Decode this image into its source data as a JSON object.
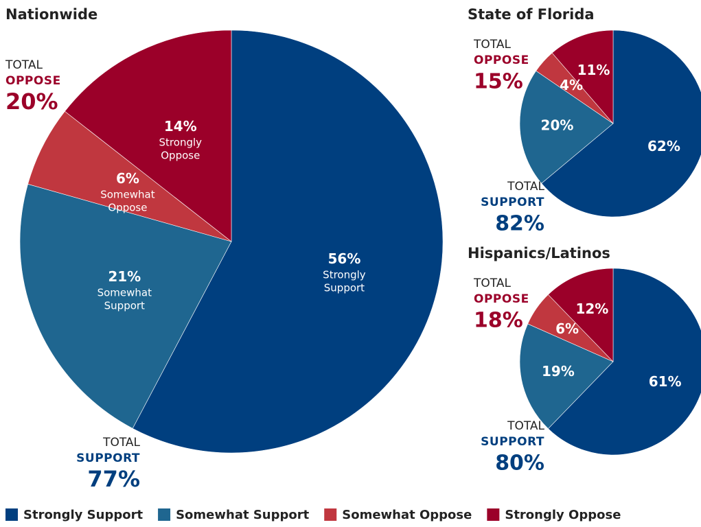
{
  "chart_data": [
    {
      "type": "pie",
      "title": "Nationwide",
      "categories": [
        "Strongly Support",
        "Somewhat Support",
        "Somewhat Oppose",
        "Strongly Oppose"
      ],
      "values": [
        56,
        21,
        6,
        14
      ],
      "value_labels": [
        "56%",
        "21%",
        "6%",
        "14%"
      ],
      "colors": [
        "#003f7f",
        "#1f6690",
        "#c0373f",
        "#9b0029"
      ],
      "slice_names": true,
      "legend": "bottom",
      "annotations": [
        {
          "title": "TOTAL",
          "name": "OPPOSE",
          "text": "20%"
        },
        {
          "title": "TOTAL",
          "name": "SUPPORT",
          "text": "77%"
        }
      ]
    },
    {
      "type": "pie",
      "title": "State of Florida",
      "values": [
        62,
        20,
        4,
        11
      ],
      "value_labels": [
        "62%",
        "20%",
        "4%",
        "11%"
      ],
      "colors": [
        "#003f7f",
        "#1f6690",
        "#c0373f",
        "#9b0029"
      ],
      "slice_names": false,
      "annotations": [
        {
          "title": "TOTAL",
          "name": "OPPOSE",
          "text": "15%"
        },
        {
          "title": "TOTAL",
          "name": "SUPPORT",
          "text": "82%"
        }
      ]
    },
    {
      "type": "pie",
      "title": "Hispanics/Latinos",
      "values": [
        61,
        19,
        6,
        12
      ],
      "value_labels": [
        "61%",
        "19%",
        "6%",
        "12%"
      ],
      "colors": [
        "#003f7f",
        "#1f6690",
        "#c0373f",
        "#9b0029"
      ],
      "slice_names": false,
      "annotations": [
        {
          "title": "TOTAL",
          "name": "OPPOSE",
          "text": "18%"
        },
        {
          "title": "TOTAL",
          "name": "SUPPORT",
          "text": "80%"
        }
      ]
    }
  ]
}
